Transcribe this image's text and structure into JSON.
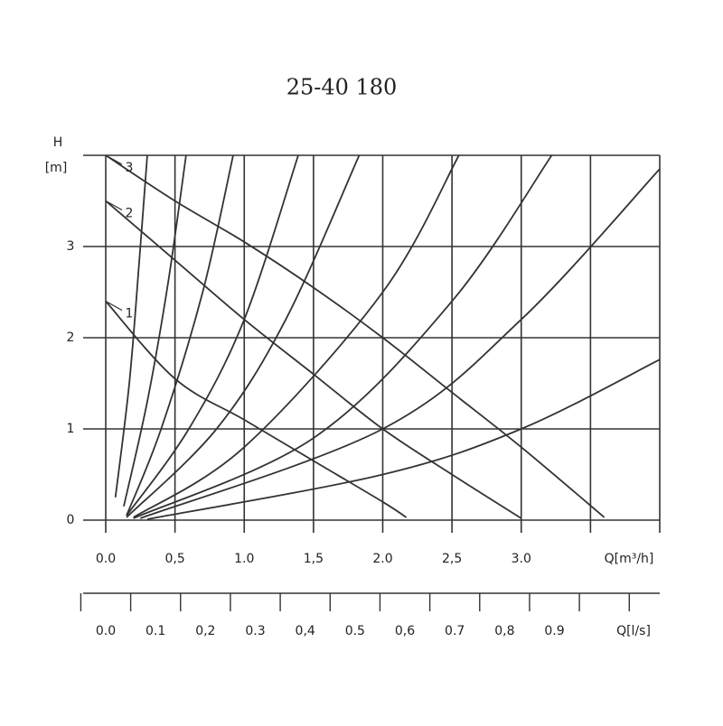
{
  "chart_data": {
    "type": "pump-curve",
    "title": "25-40 180",
    "ylabel": [
      "H",
      "[m]"
    ],
    "xlabel": "Q[m³/h]",
    "x2label": "Q[l/s]",
    "xlim": [
      0,
      4
    ],
    "ylim": [
      0,
      4
    ],
    "xticks": [
      {
        "value": 0,
        "label": "0.0"
      },
      {
        "value": 0.5,
        "label": "0,5"
      },
      {
        "value": 1,
        "label": "1.0"
      },
      {
        "value": 1.5,
        "label": "1,5"
      },
      {
        "value": 2,
        "label": "2.0"
      },
      {
        "value": 2.5,
        "label": "2,5"
      },
      {
        "value": 3,
        "label": "3.0"
      },
      {
        "value": 3.5,
        "label": null
      }
    ],
    "yticks": [
      0,
      1,
      2,
      3,
      {
        "value": 4,
        "label": null
      }
    ],
    "x2ticks": [
      {
        "value": 0,
        "label": "0.0"
      },
      {
        "value": 0.1,
        "label": "0.1"
      },
      {
        "value": 0.2,
        "label": "0,2"
      },
      {
        "value": 0.3,
        "label": "0.3"
      },
      {
        "value": 0.4,
        "label": "0,4"
      },
      {
        "value": 0.5,
        "label": "0.5"
      },
      {
        "value": 0.6,
        "label": "0,6"
      },
      {
        "value": 0.7,
        "label": "0.7"
      },
      {
        "value": 0.8,
        "label": "0,8"
      },
      {
        "value": 0.9,
        "label": "0.9"
      }
    ],
    "x2_tick_marks": [
      -0.05,
      0.05,
      0.15,
      0.25,
      0.35,
      0.45,
      0.55,
      0.65,
      0.75,
      0.85,
      0.95,
      1.05
    ],
    "x2_per_x": 3.6,
    "grid": true,
    "color": "#333333",
    "pump_curves": [
      {
        "name": "1",
        "x": [
          0,
          0.5,
          1.0,
          1.5,
          2.0,
          2.17
        ],
        "y": [
          2.4,
          1.55,
          1.1,
          0.65,
          0.2,
          0.03
        ]
      },
      {
        "name": "2",
        "x": [
          0,
          0.5,
          1.0,
          1.5,
          2.0,
          2.5,
          3.0
        ],
        "y": [
          3.5,
          2.85,
          2.2,
          1.6,
          1.0,
          0.5,
          0.02
        ]
      },
      {
        "name": "3",
        "x": [
          0,
          0.5,
          1.0,
          1.5,
          2.0,
          2.5,
          3.0,
          3.6
        ],
        "y": [
          4.0,
          3.5,
          3.05,
          2.55,
          2.0,
          1.4,
          0.8,
          0.03
        ]
      }
    ],
    "system_curves": [
      {
        "x": [
          0.07,
          0.17,
          0.24,
          0.3
        ],
        "y": [
          0.25,
          1.5,
          2.8,
          4.0
        ]
      },
      {
        "x": [
          0.13,
          0.3,
          0.45,
          0.58
        ],
        "y": [
          0.15,
          1.3,
          2.6,
          4.0
        ]
      },
      {
        "x": [
          0.15,
          0.4,
          0.7,
          0.92
        ],
        "y": [
          0.05,
          1.0,
          2.5,
          4.0
        ]
      },
      {
        "x": [
          0.15,
          0.6,
          1.0,
          1.39
        ],
        "y": [
          0.05,
          1.0,
          2.2,
          4.0
        ]
      },
      {
        "x": [
          0.15,
          0.8,
          1.3,
          1.83
        ],
        "y": [
          0.03,
          1.0,
          2.2,
          4.0
        ]
      },
      {
        "x": [
          0.2,
          1.0,
          2.0,
          2.55
        ],
        "y": [
          0.03,
          0.8,
          2.5,
          4.0
        ]
      },
      {
        "x": [
          0.2,
          1.5,
          2.5,
          3.22
        ],
        "y": [
          0.02,
          0.9,
          2.4,
          4.0
        ]
      },
      {
        "x": [
          0.25,
          2.0,
          3.0,
          4.0
        ],
        "y": [
          0.02,
          1.0,
          2.2,
          3.85
        ]
      },
      {
        "x": [
          0.3,
          2.0,
          3.0,
          4.0
        ],
        "y": [
          0.01,
          0.5,
          1.0,
          1.76
        ]
      }
    ]
  }
}
